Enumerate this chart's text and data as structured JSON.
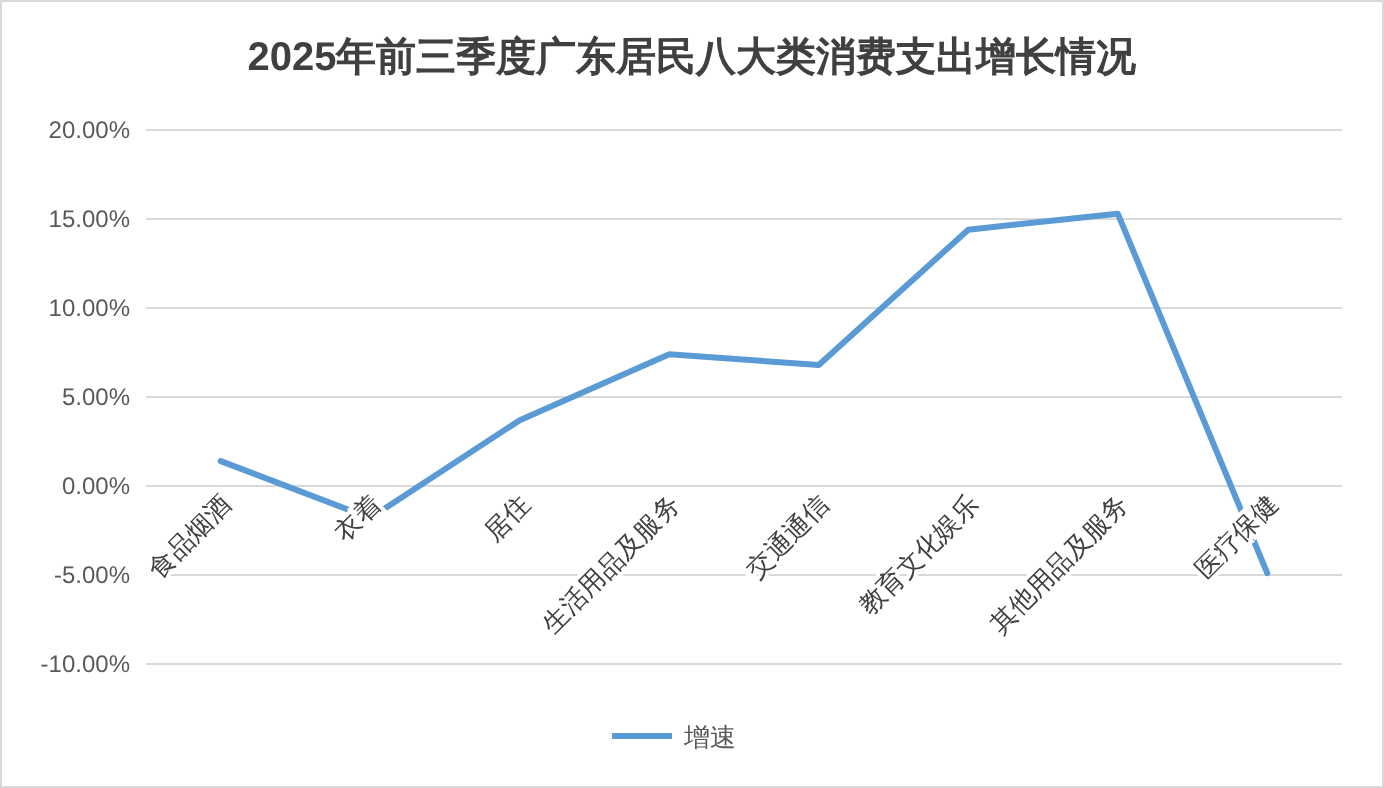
{
  "chart_data": {
    "type": "line",
    "title": "2025年前三季度广东居民八大类消费支出增长情况",
    "categories": [
      "食品烟酒",
      "衣着",
      "居住",
      "生活用品及服务",
      "交通通信",
      "教育文化娱乐",
      "其他用品及服务",
      "医疗保健"
    ],
    "series": [
      {
        "name": "增速",
        "color": "#5b9bd5",
        "values": [
          1.4,
          -1.8,
          3.7,
          7.4,
          6.8,
          14.4,
          15.3,
          -4.9
        ]
      }
    ],
    "ylim": [
      -10,
      20
    ],
    "yticks": [
      {
        "value": -10,
        "label": "-10.00%"
      },
      {
        "value": -5,
        "label": "-5.00%"
      },
      {
        "value": 0,
        "label": "0.00%"
      },
      {
        "value": 5,
        "label": "5.00%"
      },
      {
        "value": 10,
        "label": "10.00%"
      },
      {
        "value": 15,
        "label": "15.00%"
      },
      {
        "value": 20,
        "label": "20.00%"
      }
    ],
    "grid": "y",
    "legend": "bottom"
  }
}
